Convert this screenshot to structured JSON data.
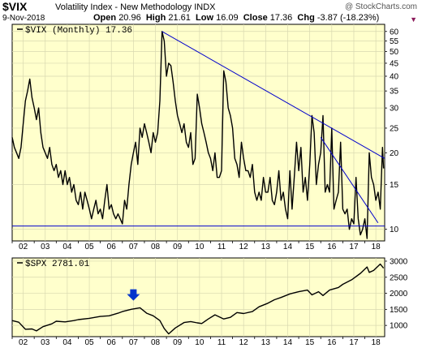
{
  "header": {
    "symbol": "$VIX",
    "name": "Volatility Index - New Methodology  INDX",
    "date": "9-Nov-2018",
    "open_label": "Open",
    "open": "20.96",
    "high_label": "High",
    "high": "21.61",
    "low_label": "Low",
    "low": "16.09",
    "close_label": "Close",
    "close": "17.36",
    "chg_label": "Chg",
    "chg": "-3.87 (-18.23%)",
    "brand": "@ StockCharts.com",
    "chg_marker": "▼"
  },
  "colors": {
    "panel_bg": "#ffffcc",
    "line": "#000000",
    "trendline": "#0000cc",
    "arrow": "#0033cc",
    "grid": "#d8d8b0"
  },
  "chart_data": [
    {
      "type": "line",
      "legend": "$VIX (Monthly) 17.36",
      "scale": "log",
      "ylim": [
        9,
        64
      ],
      "y_ticks": [
        10,
        15,
        20,
        25,
        30,
        35,
        40,
        45,
        50,
        55,
        60
      ],
      "x_ticks": [
        "02",
        "03",
        "04",
        "05",
        "06",
        "07",
        "08",
        "09",
        "10",
        "11",
        "12",
        "13",
        "14",
        "15",
        "16",
        "17",
        "18"
      ],
      "x_range": [
        2002.0,
        2018.9
      ],
      "series": [
        {
          "points": [
            [
              2002.0,
              23
            ],
            [
              2002.1,
              21
            ],
            [
              2002.2,
              20
            ],
            [
              2002.3,
              19
            ],
            [
              2002.4,
              21
            ],
            [
              2002.5,
              26
            ],
            [
              2002.6,
              32
            ],
            [
              2002.7,
              35
            ],
            [
              2002.8,
              39
            ],
            [
              2002.9,
              33
            ],
            [
              2003.0,
              30
            ],
            [
              2003.1,
              27
            ],
            [
              2003.2,
              30
            ],
            [
              2003.3,
              24
            ],
            [
              2003.4,
              21
            ],
            [
              2003.5,
              20
            ],
            [
              2003.6,
              19
            ],
            [
              2003.7,
              21
            ],
            [
              2003.8,
              18
            ],
            [
              2003.9,
              17
            ],
            [
              2004.0,
              18
            ],
            [
              2004.1,
              16
            ],
            [
              2004.2,
              17
            ],
            [
              2004.3,
              15
            ],
            [
              2004.4,
              17
            ],
            [
              2004.5,
              15
            ],
            [
              2004.6,
              16
            ],
            [
              2004.7,
              14
            ],
            [
              2004.8,
              15
            ],
            [
              2004.9,
              13
            ],
            [
              2005.0,
              12.5
            ],
            [
              2005.1,
              14
            ],
            [
              2005.2,
              12
            ],
            [
              2005.3,
              14
            ],
            [
              2005.4,
              13
            ],
            [
              2005.5,
              12
            ],
            [
              2005.6,
              11
            ],
            [
              2005.7,
              12
            ],
            [
              2005.8,
              13
            ],
            [
              2005.9,
              11.5
            ],
            [
              2006.0,
              12
            ],
            [
              2006.1,
              11
            ],
            [
              2006.2,
              13
            ],
            [
              2006.3,
              15
            ],
            [
              2006.4,
              12
            ],
            [
              2006.5,
              12.5
            ],
            [
              2006.6,
              11.5
            ],
            [
              2006.7,
              11
            ],
            [
              2006.8,
              11.5
            ],
            [
              2006.9,
              11
            ],
            [
              2007.0,
              10.5
            ],
            [
              2007.1,
              13
            ],
            [
              2007.2,
              12
            ],
            [
              2007.3,
              15
            ],
            [
              2007.4,
              18
            ],
            [
              2007.5,
              20
            ],
            [
              2007.6,
              22
            ],
            [
              2007.7,
              18
            ],
            [
              2007.8,
              25
            ],
            [
              2007.9,
              23
            ],
            [
              2008.0,
              26
            ],
            [
              2008.1,
              24
            ],
            [
              2008.2,
              22
            ],
            [
              2008.3,
              20
            ],
            [
              2008.4,
              24
            ],
            [
              2008.5,
              22
            ],
            [
              2008.6,
              24
            ],
            [
              2008.7,
              32
            ],
            [
              2008.8,
              60
            ],
            [
              2008.9,
              55
            ],
            [
              2009.0,
              40
            ],
            [
              2009.1,
              45
            ],
            [
              2009.2,
              44
            ],
            [
              2009.3,
              38
            ],
            [
              2009.4,
              32
            ],
            [
              2009.5,
              28
            ],
            [
              2009.6,
              26
            ],
            [
              2009.7,
              24
            ],
            [
              2009.8,
              26
            ],
            [
              2009.9,
              22
            ],
            [
              2010.0,
              21
            ],
            [
              2010.1,
              24
            ],
            [
              2010.2,
              18
            ],
            [
              2010.3,
              19
            ],
            [
              2010.4,
              34
            ],
            [
              2010.5,
              30
            ],
            [
              2010.6,
              26
            ],
            [
              2010.7,
              24
            ],
            [
              2010.8,
              22
            ],
            [
              2010.9,
              20
            ],
            [
              2011.0,
              19
            ],
            [
              2011.1,
              17
            ],
            [
              2011.2,
              20
            ],
            [
              2011.3,
              16
            ],
            [
              2011.4,
              16
            ],
            [
              2011.5,
              17
            ],
            [
              2011.6,
              42
            ],
            [
              2011.7,
              38
            ],
            [
              2011.8,
              30
            ],
            [
              2011.9,
              28
            ],
            [
              2012.0,
              25
            ],
            [
              2012.1,
              19
            ],
            [
              2012.2,
              18
            ],
            [
              2012.3,
              16
            ],
            [
              2012.4,
              22
            ],
            [
              2012.5,
              19
            ],
            [
              2012.6,
              17
            ],
            [
              2012.7,
              17
            ],
            [
              2012.8,
              16
            ],
            [
              2012.9,
              18
            ],
            [
              2013.0,
              14
            ],
            [
              2013.1,
              13
            ],
            [
              2013.2,
              14
            ],
            [
              2013.3,
              13
            ],
            [
              2013.4,
              16
            ],
            [
              2013.5,
              14
            ],
            [
              2013.6,
              14
            ],
            [
              2013.7,
              16
            ],
            [
              2013.8,
              13
            ],
            [
              2013.9,
              12.5
            ],
            [
              2014.0,
              14
            ],
            [
              2014.1,
              17
            ],
            [
              2014.2,
              13
            ],
            [
              2014.3,
              14
            ],
            [
              2014.4,
              12
            ],
            [
              2014.5,
              11
            ],
            [
              2014.6,
              17
            ],
            [
              2014.7,
              12
            ],
            [
              2014.8,
              16
            ],
            [
              2014.9,
              22
            ],
            [
              2015.0,
              17
            ],
            [
              2015.1,
              21
            ],
            [
              2015.2,
              14
            ],
            [
              2015.3,
              16
            ],
            [
              2015.4,
              13
            ],
            [
              2015.5,
              18
            ],
            [
              2015.6,
              28
            ],
            [
              2015.7,
              24
            ],
            [
              2015.8,
              15
            ],
            [
              2015.9,
              18
            ],
            [
              2016.0,
              20
            ],
            [
              2016.1,
              28
            ],
            [
              2016.2,
              14
            ],
            [
              2016.3,
              15
            ],
            [
              2016.4,
              14
            ],
            [
              2016.5,
              25
            ],
            [
              2016.6,
              12
            ],
            [
              2016.7,
              13
            ],
            [
              2016.8,
              14
            ],
            [
              2016.9,
              22
            ],
            [
              2017.0,
              12
            ],
            [
              2017.1,
              11.5
            ],
            [
              2017.2,
              12
            ],
            [
              2017.3,
              10
            ],
            [
              2017.4,
              11
            ],
            [
              2017.5,
              10.5
            ],
            [
              2017.6,
              16
            ],
            [
              2017.7,
              11
            ],
            [
              2017.8,
              9.5
            ],
            [
              2017.9,
              10
            ],
            [
              2018.0,
              11
            ],
            [
              2018.1,
              9.2
            ],
            [
              2018.2,
              20
            ],
            [
              2018.3,
              16
            ],
            [
              2018.4,
              15
            ],
            [
              2018.5,
              13
            ],
            [
              2018.6,
              14
            ],
            [
              2018.7,
              12
            ],
            [
              2018.8,
              21
            ],
            [
              2018.85,
              17.36
            ]
          ]
        }
      ],
      "annotations": {
        "trendlines": [
          {
            "from": [
              2008.8,
              60
            ],
            "to": [
              2018.9,
              19
            ]
          },
          {
            "from": [
              2016.0,
              23
            ],
            "to": [
              2018.6,
              10.6
            ]
          },
          {
            "from": [
              2002.0,
              10.3
            ],
            "to": [
              2018.9,
              10.3
            ]
          }
        ]
      }
    },
    {
      "type": "line",
      "legend": "$SPX 2781.01",
      "ylim": [
        650,
        3100
      ],
      "y_ticks": [
        1000,
        1500,
        2000,
        2500,
        3000
      ],
      "x_ticks": [
        "02",
        "03",
        "04",
        "05",
        "06",
        "07",
        "08",
        "09",
        "10",
        "11",
        "12",
        "13",
        "14",
        "15",
        "16",
        "17",
        "18"
      ],
      "x_range": [
        2002.0,
        2018.9
      ],
      "series": [
        {
          "points": [
            [
              2002.0,
              1150
            ],
            [
              2002.3,
              1100
            ],
            [
              2002.6,
              880
            ],
            [
              2002.9,
              890
            ],
            [
              2003.1,
              830
            ],
            [
              2003.4,
              960
            ],
            [
              2003.8,
              1050
            ],
            [
              2004.0,
              1130
            ],
            [
              2004.4,
              1110
            ],
            [
              2004.8,
              1150
            ],
            [
              2005.0,
              1180
            ],
            [
              2005.5,
              1220
            ],
            [
              2006.0,
              1280
            ],
            [
              2006.4,
              1300
            ],
            [
              2006.8,
              1380
            ],
            [
              2007.0,
              1430
            ],
            [
              2007.4,
              1500
            ],
            [
              2007.8,
              1550
            ],
            [
              2008.1,
              1380
            ],
            [
              2008.4,
              1300
            ],
            [
              2008.7,
              1150
            ],
            [
              2008.9,
              900
            ],
            [
              2009.1,
              735
            ],
            [
              2009.4,
              920
            ],
            [
              2009.8,
              1090
            ],
            [
              2010.1,
              1120
            ],
            [
              2010.4,
              1080
            ],
            [
              2010.6,
              1060
            ],
            [
              2010.9,
              1200
            ],
            [
              2011.2,
              1330
            ],
            [
              2011.6,
              1200
            ],
            [
              2011.9,
              1250
            ],
            [
              2012.2,
              1400
            ],
            [
              2012.5,
              1370
            ],
            [
              2012.9,
              1430
            ],
            [
              2013.2,
              1580
            ],
            [
              2013.6,
              1690
            ],
            [
              2013.9,
              1800
            ],
            [
              2014.2,
              1870
            ],
            [
              2014.6,
              1980
            ],
            [
              2015.0,
              2050
            ],
            [
              2015.4,
              2100
            ],
            [
              2015.6,
              1950
            ],
            [
              2015.9,
              2050
            ],
            [
              2016.1,
              1930
            ],
            [
              2016.4,
              2100
            ],
            [
              2016.8,
              2180
            ],
            [
              2017.0,
              2280
            ],
            [
              2017.4,
              2420
            ],
            [
              2017.8,
              2620
            ],
            [
              2018.1,
              2820
            ],
            [
              2018.2,
              2650
            ],
            [
              2018.4,
              2710
            ],
            [
              2018.7,
              2910
            ],
            [
              2018.85,
              2781
            ]
          ]
        }
      ],
      "annotations": {
        "arrow_at": [
          2007.5,
          1720
        ]
      }
    }
  ]
}
